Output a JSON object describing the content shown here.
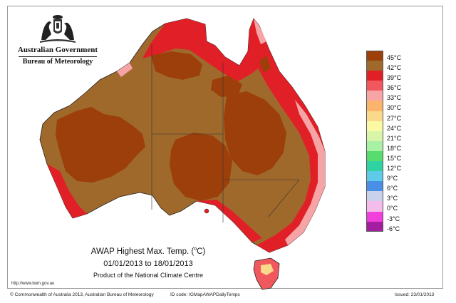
{
  "branding": {
    "government": "Australian Government",
    "agency": "Bureau of Meteorology"
  },
  "map": {
    "title_main": "AWAP Highest Max. Temp. (",
    "title_unit_sup": "o",
    "title_unit_end": "C)",
    "date_range": "01/01/2013 to 18/01/2013",
    "product": "Product of the National Climate Centre",
    "colors": {
      "t45": "#9c3f0a",
      "t42": "#a0692c",
      "t39": "#e01f26",
      "t36": "#f0585d",
      "t33": "#f7a4a7"
    }
  },
  "legend": {
    "items": [
      {
        "label": "45°C",
        "color": "#9c3f0a"
      },
      {
        "label": "42°C",
        "color": "#a0692c"
      },
      {
        "label": "39°C",
        "color": "#e01f26"
      },
      {
        "label": "36°C",
        "color": "#f0585d"
      },
      {
        "label": "33°C",
        "color": "#f7a4a7"
      },
      {
        "label": "30°C",
        "color": "#fbb46b"
      },
      {
        "label": "27°C",
        "color": "#fbd98a"
      },
      {
        "label": "24°C",
        "color": "#fbf9a4"
      },
      {
        "label": "21°C",
        "color": "#d9f6a8"
      },
      {
        "label": "18°C",
        "color": "#a8f0a4"
      },
      {
        "label": "15°C",
        "color": "#57dd6e"
      },
      {
        "label": "12°C",
        "color": "#2fd2a2"
      },
      {
        "label": "9°C",
        "color": "#5ecbe9"
      },
      {
        "label": "6°C",
        "color": "#4a8fe6"
      },
      {
        "label": "3°C",
        "color": "#c9d2ea"
      },
      {
        "label": "0°C",
        "color": "#f3bcea"
      },
      {
        "label": "-3°C",
        "color": "#f13fdd"
      },
      {
        "label": "-6°C",
        "color": "#a41fa0"
      }
    ]
  },
  "footer": {
    "url": "http://www.bom.gov.au",
    "copyright": "© Commonwealth of Australia 2013, Australian Bureau of Meteorology",
    "id_code": "ID code: IGMapAWAPDailyTemps",
    "issued": "Issued: 23/01/2013"
  }
}
